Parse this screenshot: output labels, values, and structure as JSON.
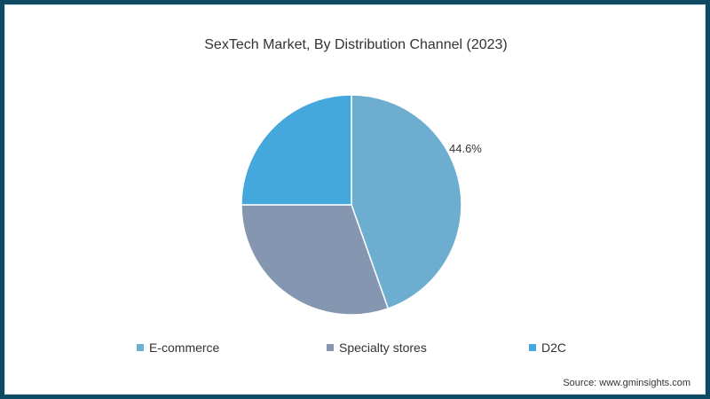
{
  "chart_data": {
    "type": "pie",
    "title": "SexTech Market, By Distribution Channel (2023)",
    "categories": [
      "E-commerce",
      "Specialty stores",
      "D2C"
    ],
    "values": [
      44.6,
      30.4,
      25.0
    ],
    "colors": [
      "#6daed0",
      "#8496b0",
      "#45a8dc"
    ],
    "data_labels": [
      {
        "category": "E-commerce",
        "text": "44.6%"
      }
    ],
    "legend_position": "bottom",
    "start_angle": "12 o'clock, clockwise"
  },
  "title": "SexTech Market, By Distribution Channel (2023)",
  "legend": [
    {
      "label": "E-commerce",
      "color": "#6daed0"
    },
    {
      "label": "Specialty stores",
      "color": "#8496b0"
    },
    {
      "label": "D2C",
      "color": "#45a8dc"
    }
  ],
  "data_label": "44.6%",
  "source": "Source: www.gminsights.com"
}
